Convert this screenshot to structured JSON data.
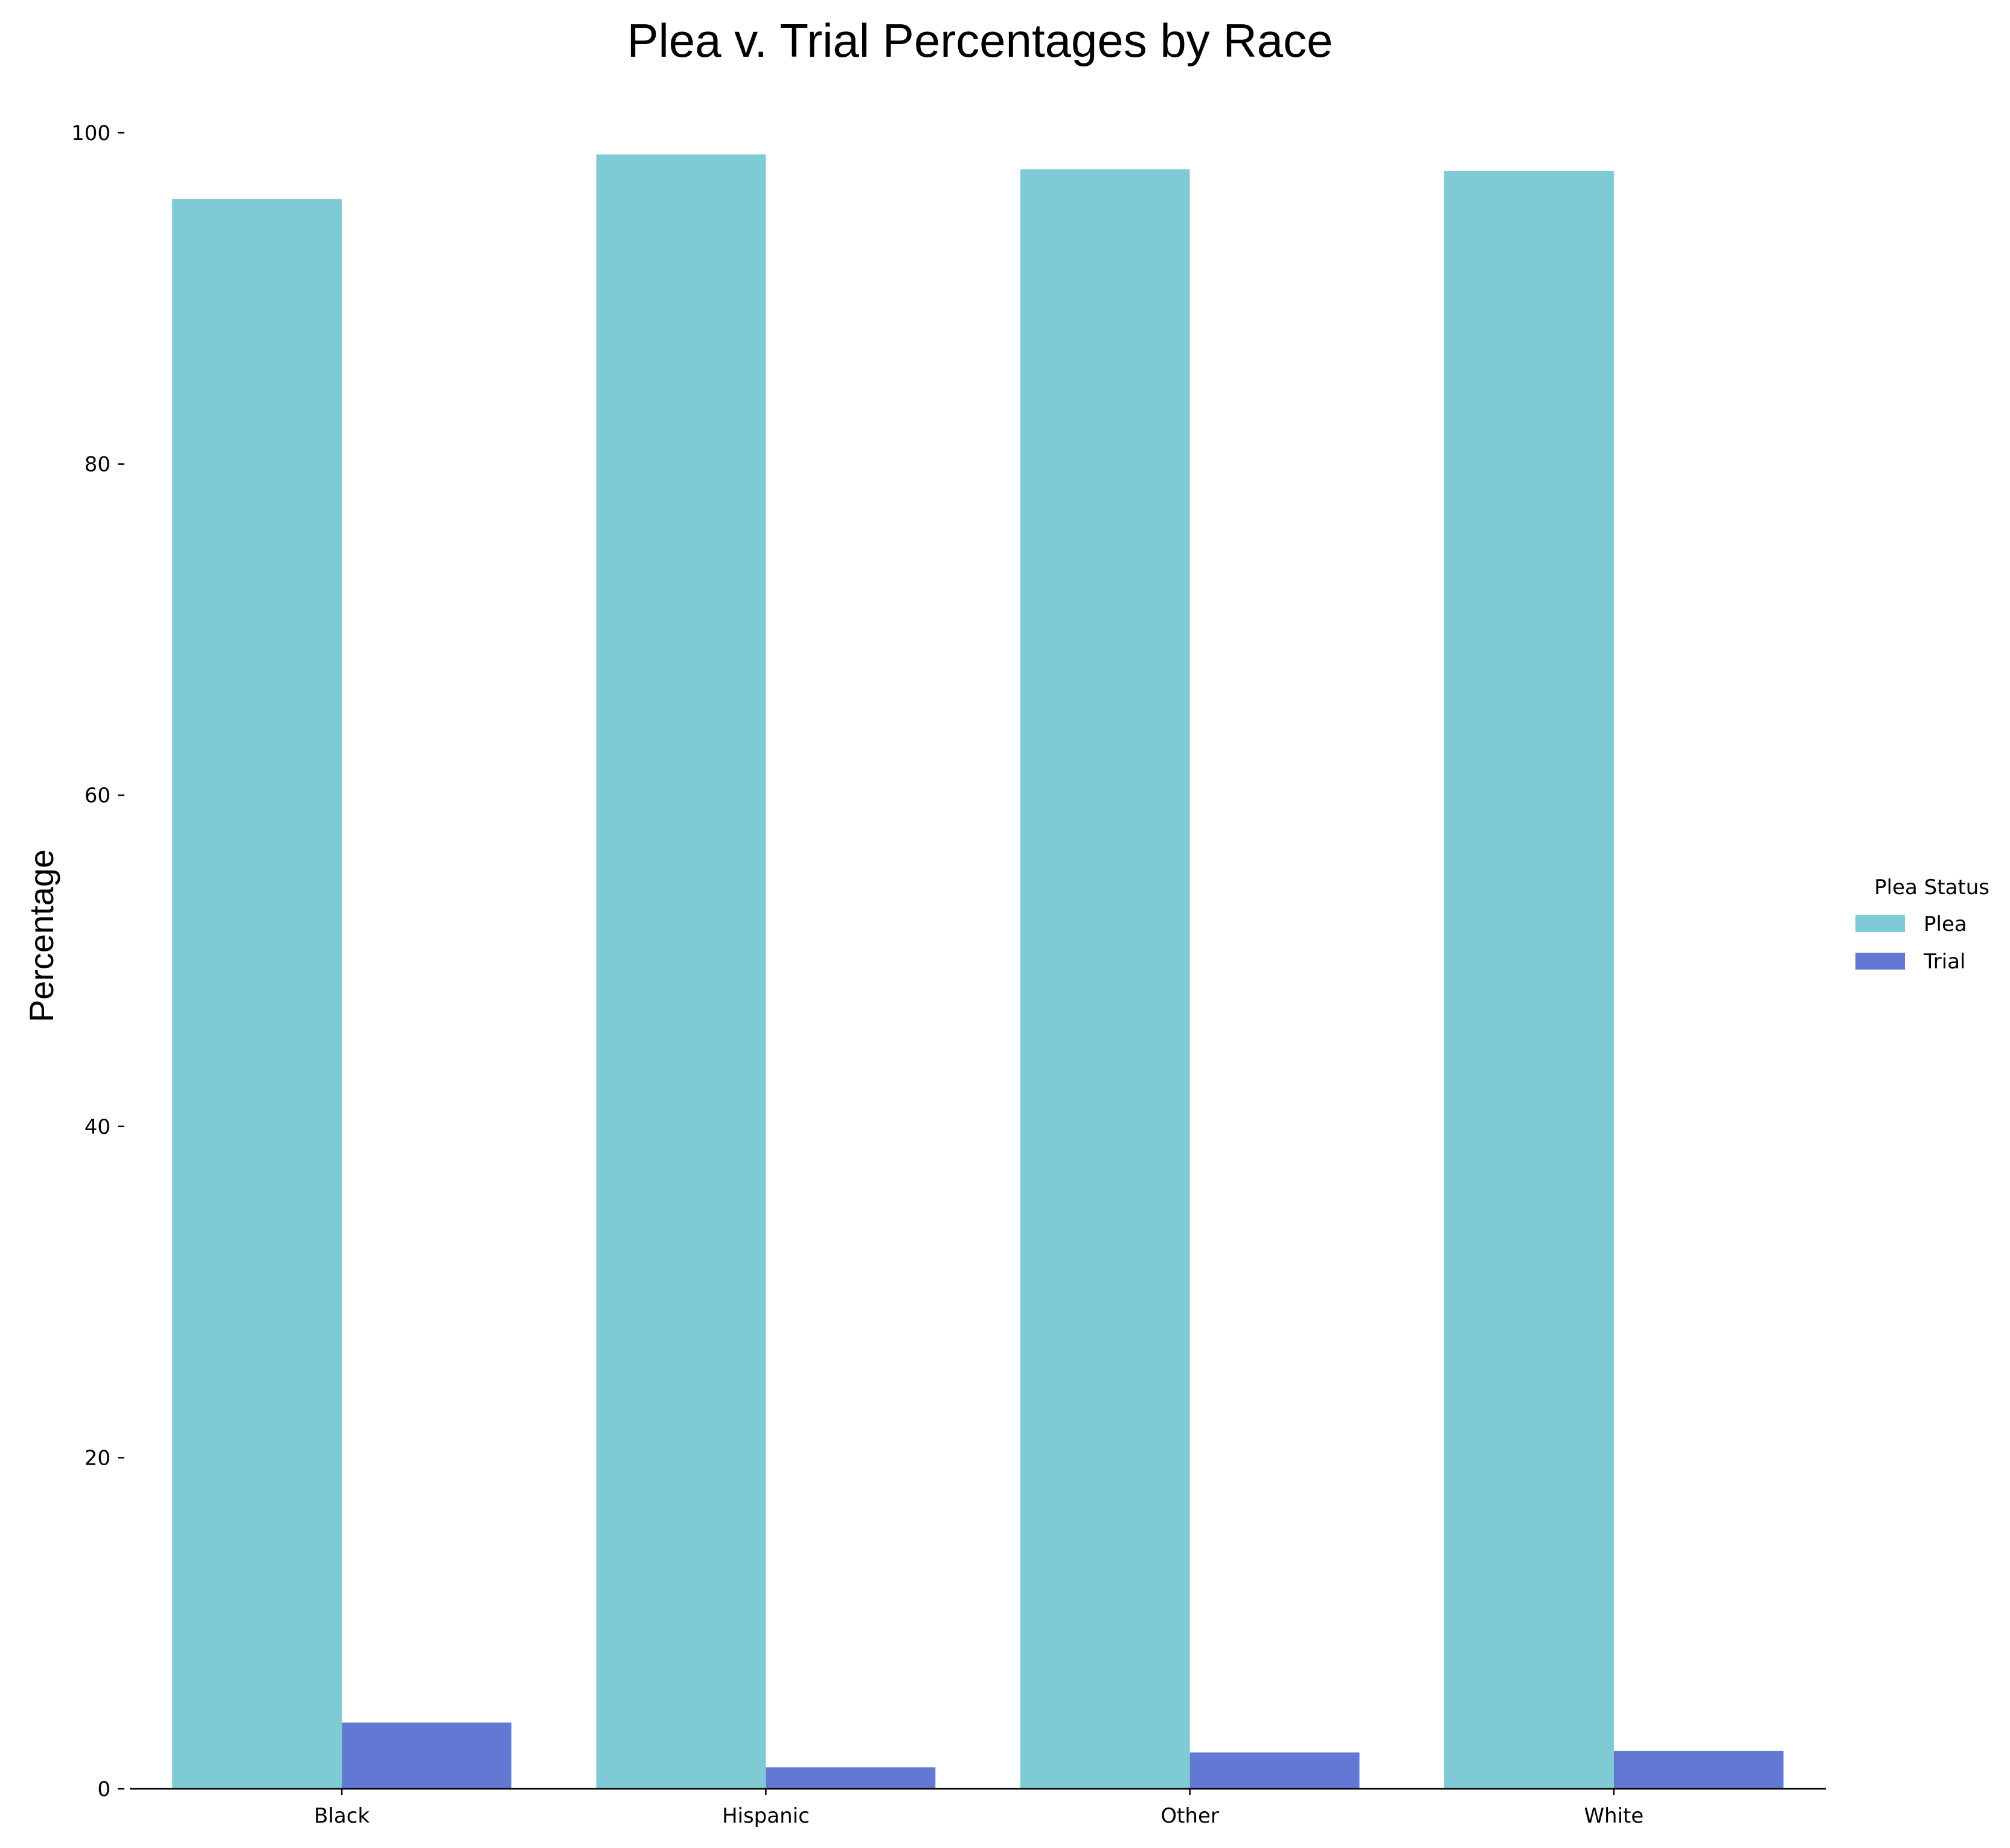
{
  "chart_data": {
    "type": "bar",
    "title": "Plea v. Trial Percentages by Race",
    "xlabel": "",
    "ylabel": "Percentage",
    "categories": [
      "Black",
      "Hispanic",
      "Other",
      "White"
    ],
    "series": [
      {
        "name": "Plea",
        "values": [
          96.0,
          98.7,
          97.8,
          97.7
        ],
        "color": "#7fcbd5"
      },
      {
        "name": "Trial",
        "values": [
          4.0,
          1.3,
          2.2,
          2.3
        ],
        "color": "#6279d3"
      }
    ],
    "ylim": [
      0,
      100
    ],
    "yticks": [
      0,
      20,
      40,
      60,
      80,
      100
    ],
    "grid": false,
    "legend": {
      "title": "Plea Status",
      "placement": "right"
    }
  }
}
